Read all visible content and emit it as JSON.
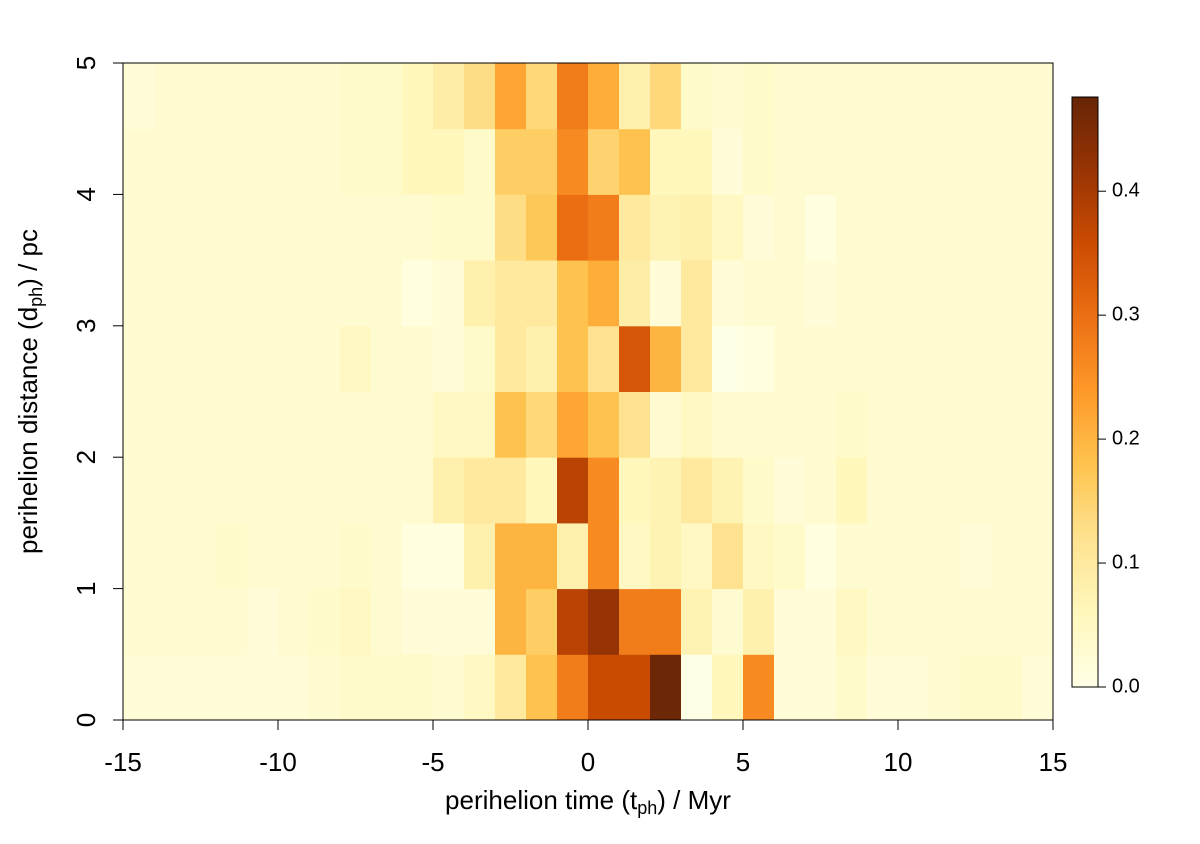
{
  "chart_data": {
    "type": "heatmap",
    "xlabel": [
      "perihelion time (t",
      "ph",
      ") / Myr"
    ],
    "ylabel": [
      "perihelion distance (d",
      "ph",
      ") / pc"
    ],
    "x_bins": [
      -15,
      -14,
      -13,
      -12,
      -11,
      -10,
      -9,
      -8,
      -7,
      -6,
      -5,
      -4,
      -3,
      -2,
      -1,
      0,
      1,
      2,
      3,
      4,
      5,
      6,
      7,
      8,
      9,
      10,
      11,
      12,
      13,
      14,
      15
    ],
    "y_bins": [
      0,
      0.5,
      1,
      1.5,
      2,
      2.5,
      3,
      3.5,
      4,
      4.5,
      5
    ],
    "z": [
      [
        0.02,
        0.02,
        0.02,
        0.02,
        0.02,
        0.02,
        0.03,
        0.04,
        0.04,
        0.04,
        0.03,
        0.05,
        0.1,
        0.18,
        0.28,
        0.36,
        0.36,
        0.47,
        0.0,
        0.06,
        0.26,
        0.02,
        0.02,
        0.04,
        0.02,
        0.02,
        0.03,
        0.04,
        0.04,
        0.02
      ],
      [
        0.03,
        0.03,
        0.03,
        0.03,
        0.02,
        0.03,
        0.04,
        0.05,
        0.03,
        0.02,
        0.02,
        0.02,
        0.2,
        0.16,
        0.38,
        0.42,
        0.28,
        0.28,
        0.07,
        0.03,
        0.08,
        0.02,
        0.02,
        0.05,
        0.03,
        0.03,
        0.03,
        0.03,
        0.03,
        0.03
      ],
      [
        0.03,
        0.03,
        0.03,
        0.04,
        0.03,
        0.03,
        0.03,
        0.04,
        0.03,
        0.01,
        0.01,
        0.08,
        0.2,
        0.2,
        0.08,
        0.26,
        0.05,
        0.07,
        0.05,
        0.12,
        0.05,
        0.04,
        0.01,
        0.03,
        0.03,
        0.03,
        0.03,
        0.02,
        0.03,
        0.03
      ],
      [
        0.03,
        0.03,
        0.03,
        0.03,
        0.03,
        0.03,
        0.03,
        0.03,
        0.03,
        0.03,
        0.08,
        0.1,
        0.1,
        0.06,
        0.38,
        0.26,
        0.06,
        0.07,
        0.1,
        0.07,
        0.04,
        0.02,
        0.03,
        0.06,
        0.03,
        0.03,
        0.03,
        0.03,
        0.03,
        0.03
      ],
      [
        0.03,
        0.03,
        0.03,
        0.03,
        0.03,
        0.03,
        0.03,
        0.03,
        0.03,
        0.03,
        0.05,
        0.05,
        0.18,
        0.14,
        0.22,
        0.18,
        0.12,
        0.03,
        0.05,
        0.03,
        0.03,
        0.03,
        0.03,
        0.04,
        0.03,
        0.03,
        0.03,
        0.03,
        0.03,
        0.03
      ],
      [
        0.03,
        0.03,
        0.03,
        0.03,
        0.03,
        0.03,
        0.03,
        0.05,
        0.03,
        0.03,
        0.02,
        0.04,
        0.1,
        0.08,
        0.18,
        0.12,
        0.34,
        0.2,
        0.1,
        0.0,
        0.01,
        0.03,
        0.03,
        0.03,
        0.03,
        0.03,
        0.03,
        0.03,
        0.03,
        0.03
      ],
      [
        0.03,
        0.03,
        0.03,
        0.03,
        0.03,
        0.03,
        0.03,
        0.03,
        0.03,
        0.01,
        0.02,
        0.08,
        0.1,
        0.1,
        0.18,
        0.21,
        0.09,
        0.02,
        0.1,
        0.02,
        0.03,
        0.03,
        0.02,
        0.03,
        0.03,
        0.03,
        0.03,
        0.03,
        0.03,
        0.03
      ],
      [
        0.03,
        0.03,
        0.03,
        0.03,
        0.03,
        0.03,
        0.03,
        0.03,
        0.03,
        0.03,
        0.04,
        0.04,
        0.13,
        0.17,
        0.3,
        0.28,
        0.1,
        0.07,
        0.08,
        0.05,
        0.02,
        0.03,
        0.01,
        0.03,
        0.03,
        0.03,
        0.03,
        0.03,
        0.03,
        0.03
      ],
      [
        0.03,
        0.03,
        0.03,
        0.03,
        0.03,
        0.03,
        0.03,
        0.04,
        0.04,
        0.06,
        0.06,
        0.04,
        0.16,
        0.16,
        0.26,
        0.15,
        0.18,
        0.06,
        0.06,
        0.02,
        0.04,
        0.03,
        0.03,
        0.03,
        0.03,
        0.03,
        0.03,
        0.03,
        0.03,
        0.03
      ],
      [
        0.02,
        0.03,
        0.03,
        0.03,
        0.03,
        0.03,
        0.03,
        0.04,
        0.04,
        0.06,
        0.09,
        0.13,
        0.22,
        0.14,
        0.28,
        0.21,
        0.08,
        0.14,
        0.04,
        0.03,
        0.04,
        0.03,
        0.03,
        0.03,
        0.03,
        0.03,
        0.03,
        0.03,
        0.03,
        0.03
      ]
    ],
    "xlim": [
      -15,
      15
    ],
    "xticks": [
      -15,
      -10,
      -5,
      0,
      5,
      10,
      15
    ],
    "ylim": [
      0,
      5
    ],
    "yticks": [
      0,
      1,
      2,
      3,
      4,
      5
    ],
    "zlim": [
      0,
      0.476
    ],
    "zticks": [
      {
        "value": 0,
        "label": "0.0"
      },
      0.1,
      0.2,
      0.3,
      0.4
    ],
    "colors": [
      "#ffffe5",
      "#fff7bc",
      "#fee391",
      "#fec44f",
      "#fe9929",
      "#ec7014",
      "#cc4c02",
      "#993404",
      "#662506"
    ]
  }
}
